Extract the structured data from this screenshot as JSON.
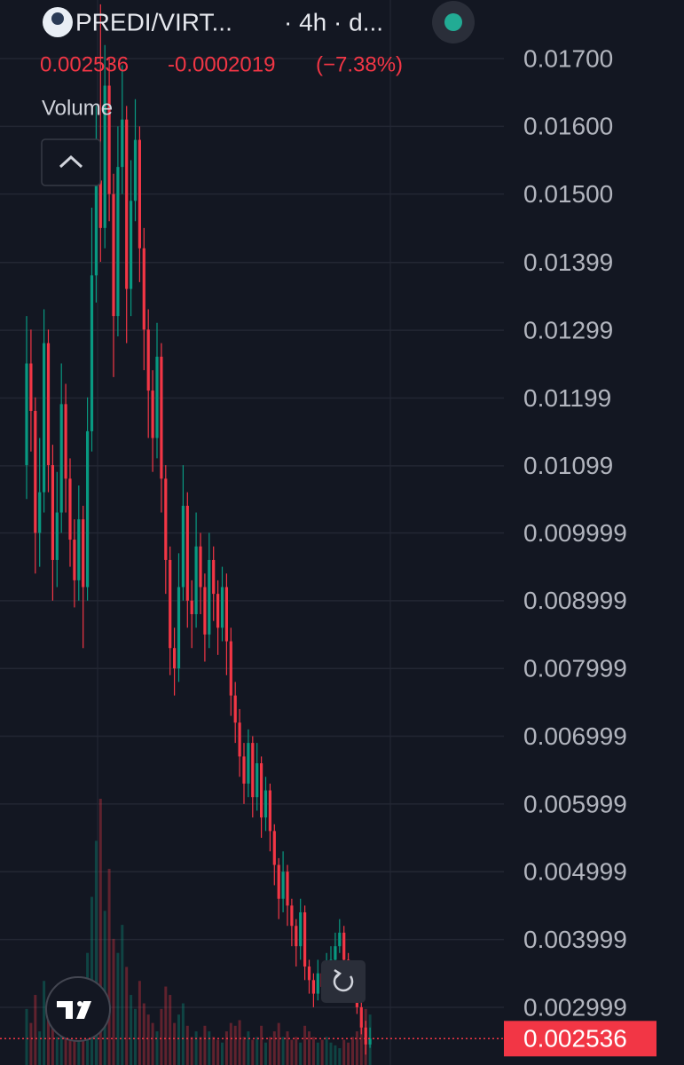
{
  "chart_data": {
    "type": "candlestick",
    "title": "PREDI/VIRT...",
    "subtitle": "· 4h · d...",
    "last": 0.002536,
    "change": -0.0002019,
    "change_pct": {
      "value": -7.38,
      "label": "(−7.38%)"
    },
    "volume_label": "Volume",
    "up_color": "#089981",
    "down_color": "#f23645",
    "grid": true,
    "ylim": [
      0.002147,
      0.017864
    ],
    "yticks": [
      {
        "value": 0.017,
        "label": "0.01700"
      },
      {
        "value": 0.016,
        "label": "0.01600"
      },
      {
        "value": 0.015,
        "label": "0.01500"
      },
      0.01399,
      0.01299,
      0.01199,
      0.01099,
      0.009999,
      0.008999,
      0.007999,
      0.006999,
      0.005999,
      0.004999,
      0.003999,
      0.002999
    ],
    "open": [
      0.011,
      0.0125,
      0.0118,
      0.01,
      0.0106,
      0.0128,
      0.011,
      0.0096,
      0.0103,
      0.0119,
      0.0108,
      0.0099,
      0.0093,
      0.0102,
      0.0092,
      0.0115,
      0.0138,
      0.0152,
      0.0145,
      0.0166,
      0.015,
      0.0132,
      0.0154,
      0.0161,
      0.0136,
      0.0149,
      0.0158,
      0.0142,
      0.013,
      0.0121,
      0.0114,
      0.0126,
      0.0108,
      0.0096,
      0.0083,
      0.008,
      0.0092,
      0.0104,
      0.009,
      0.0088,
      0.0098,
      0.0092,
      0.0085,
      0.0096,
      0.0091,
      0.0086,
      0.0092,
      0.0084,
      0.0076,
      0.0072,
      0.0067,
      0.0063,
      0.0069,
      0.0061,
      0.0066,
      0.0058,
      0.0062,
      0.0056,
      0.0051,
      0.0046,
      0.005,
      0.0045,
      0.0042,
      0.0039,
      0.0044,
      0.0036,
      0.0034,
      0.0032,
      0.0035,
      0.0033,
      0.0036,
      0.0037,
      0.0039,
      0.0041,
      0.0037,
      0.0035,
      0.0033,
      0.003,
      0.0027,
      0.00245
    ],
    "high": [
      0.0132,
      0.013,
      0.012,
      0.0114,
      0.0133,
      0.013,
      0.0113,
      0.0109,
      0.0125,
      0.0122,
      0.0111,
      0.0102,
      0.0107,
      0.0104,
      0.012,
      0.0148,
      0.0163,
      0.0178,
      0.0172,
      0.017,
      0.0153,
      0.016,
      0.0169,
      0.0163,
      0.0155,
      0.0164,
      0.016,
      0.0145,
      0.0133,
      0.0124,
      0.0131,
      0.0128,
      0.011,
      0.0098,
      0.0086,
      0.0097,
      0.011,
      0.0106,
      0.0093,
      0.0103,
      0.01,
      0.0094,
      0.01,
      0.0098,
      0.0093,
      0.0095,
      0.0094,
      0.0086,
      0.0078,
      0.0074,
      0.0069,
      0.0071,
      0.007,
      0.0069,
      0.0067,
      0.0064,
      0.0063,
      0.0057,
      0.0052,
      0.0053,
      0.0051,
      0.0046,
      0.0043,
      0.0046,
      0.0045,
      0.0037,
      0.0035,
      0.0037,
      0.0036,
      0.0038,
      0.0039,
      0.0041,
      0.0043,
      0.0042,
      0.0038,
      0.0036,
      0.0034,
      0.0031,
      0.0028,
      0.0027
    ],
    "low": [
      0.0105,
      0.0112,
      0.0094,
      0.0095,
      0.0103,
      0.0106,
      0.009,
      0.0092,
      0.01,
      0.0103,
      0.0095,
      0.0089,
      0.009,
      0.0083,
      0.009,
      0.0112,
      0.0134,
      0.014,
      0.0142,
      0.0146,
      0.0123,
      0.0129,
      0.015,
      0.0128,
      0.0132,
      0.0146,
      0.0137,
      0.0124,
      0.0114,
      0.0109,
      0.0111,
      0.0103,
      0.0091,
      0.0079,
      0.0076,
      0.0078,
      0.009,
      0.0086,
      0.0083,
      0.0086,
      0.0088,
      0.0081,
      0.0083,
      0.0087,
      0.0082,
      0.0084,
      0.0079,
      0.0073,
      0.0069,
      0.0064,
      0.006,
      0.0061,
      0.0058,
      0.0059,
      0.0055,
      0.0056,
      0.0053,
      0.0048,
      0.0043,
      0.0044,
      0.0042,
      0.0039,
      0.0036,
      0.0037,
      0.0034,
      0.0032,
      0.003,
      0.0031,
      0.0031,
      0.0032,
      0.0035,
      0.0036,
      0.0038,
      0.0036,
      0.0034,
      0.0032,
      0.0029,
      0.0026,
      0.0023,
      0.0024
    ],
    "close": [
      0.0125,
      0.0118,
      0.01,
      0.0106,
      0.0128,
      0.011,
      0.0096,
      0.0103,
      0.0119,
      0.0108,
      0.0099,
      0.0093,
      0.0102,
      0.0092,
      0.0115,
      0.0138,
      0.0152,
      0.0145,
      0.0166,
      0.015,
      0.0132,
      0.0154,
      0.0161,
      0.0136,
      0.0149,
      0.0158,
      0.0142,
      0.013,
      0.0121,
      0.0114,
      0.0126,
      0.0108,
      0.0096,
      0.0083,
      0.008,
      0.0092,
      0.0104,
      0.009,
      0.0088,
      0.0098,
      0.0092,
      0.0085,
      0.0096,
      0.0091,
      0.0086,
      0.0092,
      0.0084,
      0.0076,
      0.0072,
      0.0067,
      0.0063,
      0.0069,
      0.0061,
      0.0066,
      0.0058,
      0.0062,
      0.0056,
      0.0051,
      0.0046,
      0.005,
      0.0045,
      0.0042,
      0.0039,
      0.0044,
      0.0036,
      0.0034,
      0.0032,
      0.0035,
      0.0033,
      0.0036,
      0.0037,
      0.0039,
      0.0041,
      0.0037,
      0.0035,
      0.0033,
      0.003,
      0.0027,
      0.00245,
      0.002536
    ],
    "volume": [
      20,
      15,
      25,
      12,
      30,
      18,
      22,
      10,
      14,
      12,
      16,
      20,
      10,
      24,
      40,
      60,
      80,
      95,
      55,
      70,
      45,
      40,
      50,
      35,
      25,
      20,
      30,
      22,
      18,
      15,
      12,
      20,
      28,
      25,
      15,
      18,
      22,
      14,
      10,
      12,
      10,
      14,
      12,
      10,
      9,
      8,
      12,
      15,
      14,
      16,
      10,
      12,
      9,
      10,
      14,
      8,
      10,
      12,
      15,
      10,
      12,
      9,
      10,
      8,
      14,
      12,
      10,
      8,
      9,
      10,
      8,
      7,
      6,
      9,
      8,
      10,
      12,
      15,
      20,
      18
    ]
  }
}
